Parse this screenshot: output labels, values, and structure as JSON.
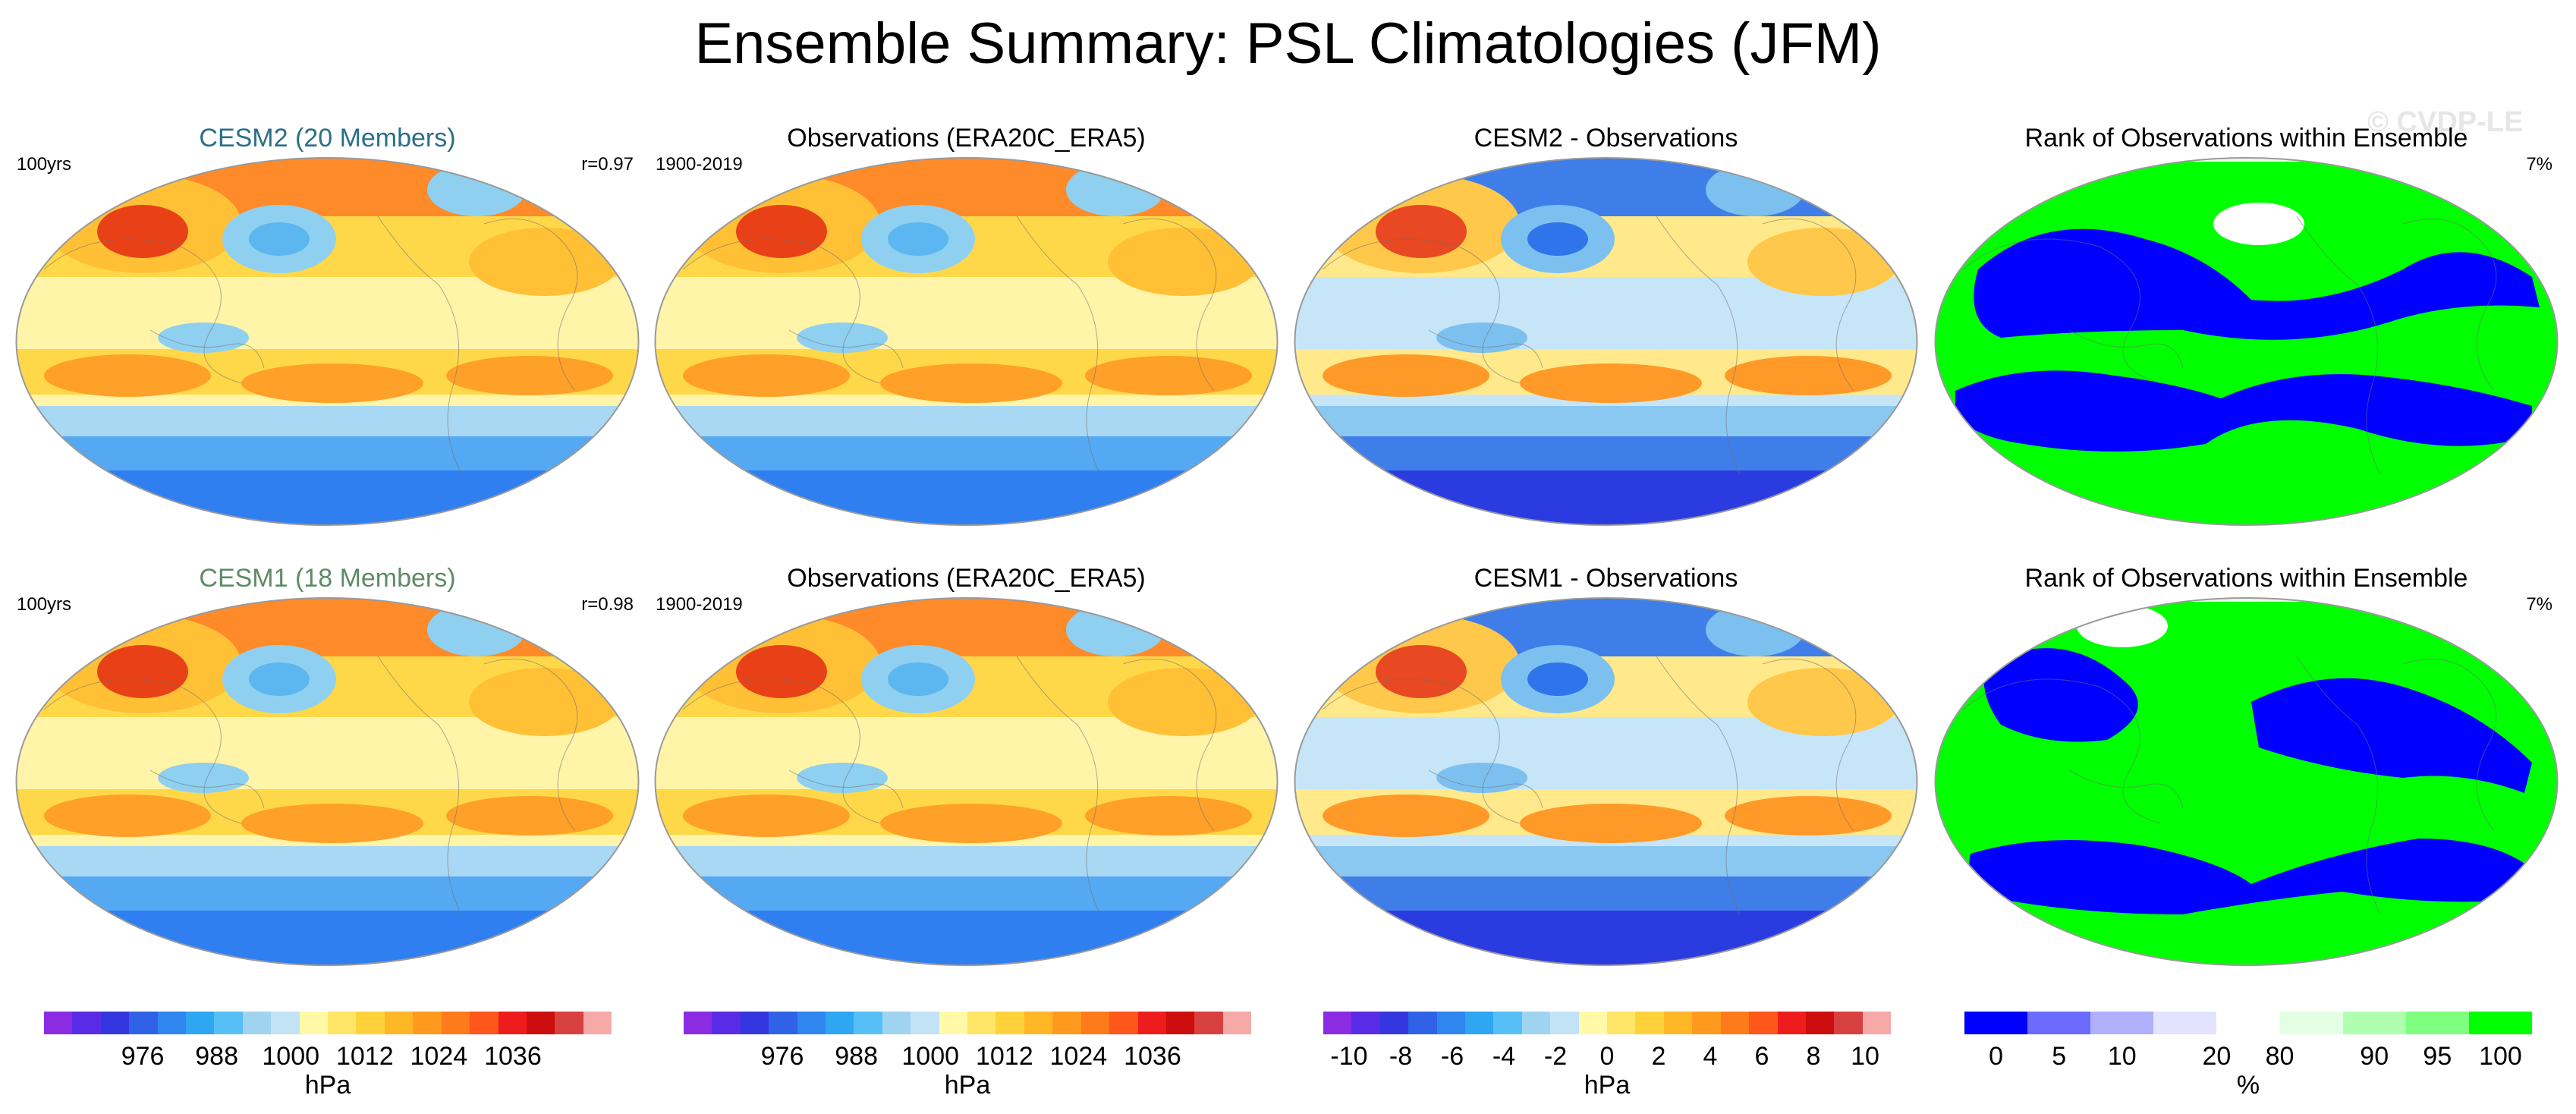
{
  "figure": {
    "title": "Ensemble Summary: PSL Climatologies (JFM)",
    "watermark": "© CVDP-LE"
  },
  "chart_data": [
    {
      "type": "heatmap",
      "title": "CESM2 (20 Members)",
      "title_color": "#2a6f87",
      "left_label": "100yrs",
      "right_label": "r=0.97",
      "units": "hPa",
      "palette": "psl"
    },
    {
      "type": "heatmap",
      "title": "Observations (ERA20C_ERA5)",
      "title_color": "#000000",
      "left_label": "1900-2019",
      "right_label": "",
      "units": "hPa",
      "palette": "psl"
    },
    {
      "type": "heatmap",
      "title": "CESM2 - Observations",
      "title_color": "#000000",
      "left_label": "",
      "right_label": "",
      "units": "hPa",
      "palette": "diff"
    },
    {
      "type": "heatmap",
      "title": "Rank of Observations within Ensemble",
      "title_color": "#000000",
      "left_label": "",
      "right_label": "7%",
      "units": "%",
      "palette": "rank"
    },
    {
      "type": "heatmap",
      "title": "CESM1 (18 Members)",
      "title_color": "#5f8a67",
      "left_label": "100yrs",
      "right_label": "r=0.98",
      "units": "hPa",
      "palette": "psl"
    },
    {
      "type": "heatmap",
      "title": "Observations (ERA20C_ERA5)",
      "title_color": "#000000",
      "left_label": "1900-2019",
      "right_label": "",
      "units": "hPa",
      "palette": "psl"
    },
    {
      "type": "heatmap",
      "title": "CESM1 - Observations",
      "title_color": "#000000",
      "left_label": "",
      "right_label": "",
      "units": "hPa",
      "palette": "diff"
    },
    {
      "type": "heatmap",
      "title": "Rank of Observations within Ensemble",
      "title_color": "#000000",
      "left_label": "",
      "right_label": "7%",
      "units": "%",
      "palette": "rank"
    }
  ],
  "colorbars": [
    {
      "units": "hPa",
      "colors": [
        "#8b2be2",
        "#5a2be6",
        "#3437e0",
        "#2f62e6",
        "#2f86ee",
        "#2ea6f2",
        "#56c0f6",
        "#9fd3f0",
        "#c2e3f6",
        "#fff9a8",
        "#ffe666",
        "#ffd23c",
        "#ffb726",
        "#ff9a1e",
        "#ff7a1a",
        "#ff561a",
        "#ee1c1c",
        "#cc0e0e",
        "#d94040",
        "#f5a9a9"
      ],
      "ticks": [
        {
          "label": "976",
          "value": 976
        },
        {
          "label": "988",
          "value": 988
        },
        {
          "label": "1000",
          "value": 1000
        },
        {
          "label": "1012",
          "value": 1012
        },
        {
          "label": "1024",
          "value": 1024
        },
        {
          "label": "1036",
          "value": 1036
        }
      ],
      "range": [
        960,
        1052
      ]
    },
    {
      "units": "hPa",
      "colors": [
        "#8b2be2",
        "#5a2be6",
        "#3437e0",
        "#2f62e6",
        "#2f86ee",
        "#2ea6f2",
        "#56c0f6",
        "#9fd3f0",
        "#c2e3f6",
        "#fff9a8",
        "#ffe666",
        "#ffd23c",
        "#ffb726",
        "#ff9a1e",
        "#ff7a1a",
        "#ff561a",
        "#ee1c1c",
        "#cc0e0e",
        "#d94040",
        "#f5a9a9"
      ],
      "ticks": [
        {
          "label": "976",
          "value": 976
        },
        {
          "label": "988",
          "value": 988
        },
        {
          "label": "1000",
          "value": 1000
        },
        {
          "label": "1012",
          "value": 1012
        },
        {
          "label": "1024",
          "value": 1024
        },
        {
          "label": "1036",
          "value": 1036
        }
      ],
      "range": [
        960,
        1052
      ]
    },
    {
      "units": "hPa",
      "colors": [
        "#8b2be2",
        "#5a2be6",
        "#3437e0",
        "#2f62e6",
        "#2f86ee",
        "#2ea6f2",
        "#56c0f6",
        "#9fd3f0",
        "#c2e3f6",
        "#fff9a8",
        "#ffe666",
        "#ffd23c",
        "#ffb726",
        "#ff9a1e",
        "#ff7a1a",
        "#ff561a",
        "#ee1c1c",
        "#cc0e0e",
        "#d94040",
        "#f5a9a9"
      ],
      "ticks": [
        {
          "label": "-10",
          "value": -10
        },
        {
          "label": "-8",
          "value": -8
        },
        {
          "label": "-6",
          "value": -6
        },
        {
          "label": "-4",
          "value": -4
        },
        {
          "label": "-2",
          "value": -2
        },
        {
          "label": "0",
          "value": 0
        },
        {
          "label": "2",
          "value": 2
        },
        {
          "label": "4",
          "value": 4
        },
        {
          "label": "6",
          "value": 6
        },
        {
          "label": "8",
          "value": 8
        },
        {
          "label": "10",
          "value": 10
        }
      ],
      "range": [
        -11,
        11
      ]
    },
    {
      "units": "%",
      "colors": [
        "#0000ff",
        "#6b6bff",
        "#b0b0ff",
        "#e3e3ff",
        "#ffffff",
        "#e3ffe3",
        "#b0ffb0",
        "#7fff7f",
        "#00ff00"
      ],
      "ticks": [
        {
          "label": "0",
          "value": 0.5
        },
        {
          "label": "5",
          "value": 1.5
        },
        {
          "label": "10",
          "value": 2.5
        },
        {
          "label": "20",
          "value": 4
        },
        {
          "label": "80",
          "value": 5
        },
        {
          "label": "90",
          "value": 6.5
        },
        {
          "label": "95",
          "value": 7.5
        },
        {
          "label": "100",
          "value": 8.5
        }
      ],
      "range": [
        0,
        9
      ]
    }
  ]
}
